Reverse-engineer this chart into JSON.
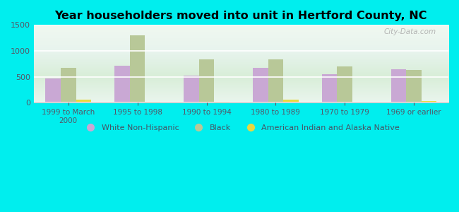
{
  "title": "Year householders moved into unit in Hertford County, NC",
  "categories": [
    "1999 to March\n2000",
    "1995 to 1998",
    "1990 to 1994",
    "1980 to 1989",
    "1970 to 1979",
    "1969 or earlier"
  ],
  "series": {
    "White Non-Hispanic": [
      470,
      710,
      520,
      670,
      555,
      650
    ],
    "Black": [
      670,
      1300,
      830,
      840,
      700,
      625
    ],
    "American Indian and Alaska Native": [
      55,
      20,
      20,
      55,
      5,
      30
    ]
  },
  "colors": {
    "White Non-Hispanic": "#c9a8d4",
    "Black": "#b8c898",
    "American Indian and Alaska Native": "#e8d840"
  },
  "ylim": [
    0,
    1500
  ],
  "yticks": [
    0,
    500,
    1000,
    1500
  ],
  "background_color": "#00eeee",
  "watermark": "City-Data.com",
  "bar_width": 0.22
}
